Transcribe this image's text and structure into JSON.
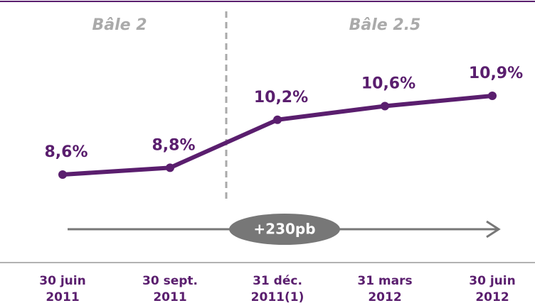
{
  "chart_data": {
    "type": "line",
    "categories": [
      "30 juin\n2011",
      "30 sept.\n2011",
      "31 déc.\n2011(1)",
      "31 mars\n2012",
      "30 juin\n2012"
    ],
    "series": [
      {
        "color": "#5a1e6e",
        "values": [
          8.6,
          8.8,
          10.2,
          10.6,
          10.9
        ],
        "value_labels": [
          "8,6%",
          "8,8%",
          "10,2%",
          "10,6%",
          "10,9%"
        ]
      }
    ],
    "annotations": [
      "Bâle 2",
      "Bâle 2.5",
      "+230pb"
    ]
  }
}
